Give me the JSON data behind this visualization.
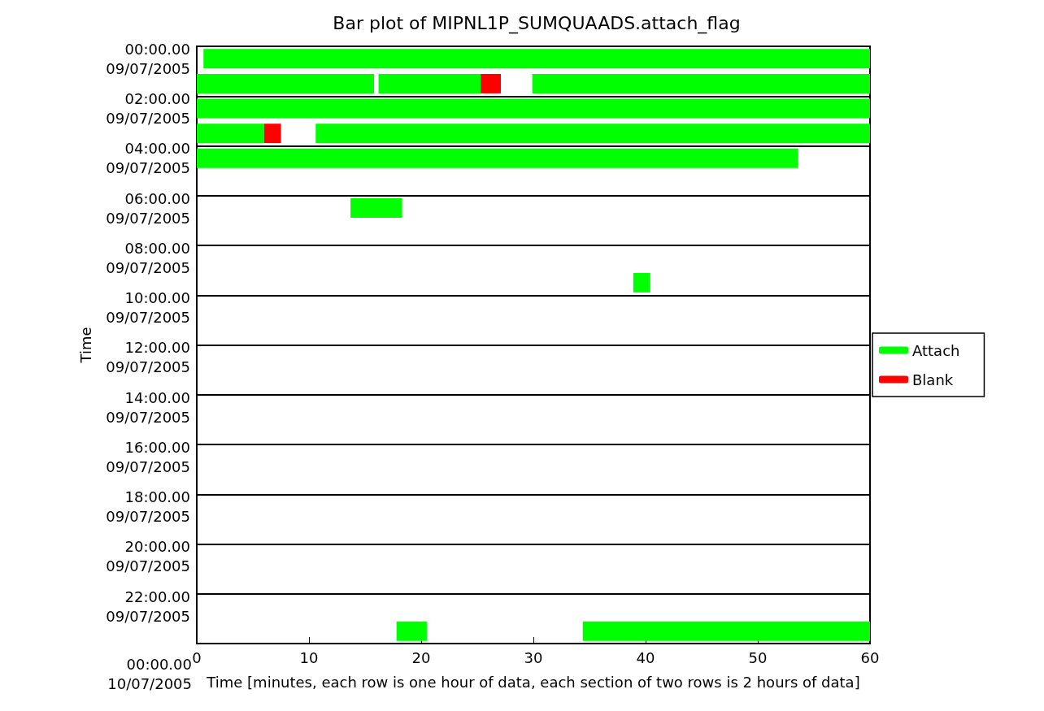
{
  "chart_data": {
    "type": "bar",
    "orientation": "horizontal",
    "title": "Bar plot of MIPNL1P_SUMQUAADS.attach_flag",
    "xlabel": "Time [minutes, each row is one hour of data, each section of two rows is 2 hours of data]",
    "ylabel": "Time",
    "categories": [
      "00:00.00\n09/07/2005",
      null,
      "02:00.00\n09/07/2005",
      null,
      "04:00.00\n09/07/2005",
      null,
      "06:00.00\n09/07/2005",
      null,
      "08:00.00\n09/07/2005",
      null,
      "10:00.00\n09/07/2005",
      null,
      "12:00.00\n09/07/2005",
      null,
      "14:00.00\n09/07/2005",
      null,
      "16:00.00\n09/07/2005",
      null,
      "18:00.00\n09/07/2005",
      null,
      "20:00.00\n09/07/2005",
      null,
      "22:00.00\n09/07/2005",
      null
    ],
    "series": [
      {
        "name": "Attach",
        "color": "#00ff00",
        "base": [
          0.6,
          0,
          0,
          0,
          0,
          null,
          13.7,
          null,
          null,
          38.9,
          null,
          null,
          null,
          null,
          null,
          null,
          null,
          null,
          null,
          null,
          null,
          null,
          null,
          17.8
        ],
        "values": [
          59.4,
          15.8,
          60,
          6.0,
          53.6,
          null,
          4.6,
          null,
          null,
          1.5,
          null,
          null,
          null,
          null,
          null,
          null,
          null,
          null,
          null,
          null,
          null,
          null,
          null,
          2.7
        ]
      },
      {
        "color": "#00ff00",
        "base": [
          null,
          16.2,
          null,
          10.6,
          null,
          null,
          null,
          null,
          null,
          null,
          null,
          null,
          null,
          null,
          null,
          null,
          null,
          null,
          null,
          null,
          null,
          null,
          null,
          34.4
        ],
        "values": [
          null,
          9.1,
          null,
          49.4,
          null,
          null,
          null,
          null,
          null,
          null,
          null,
          null,
          null,
          null,
          null,
          null,
          null,
          null,
          null,
          null,
          null,
          null,
          null,
          25.6
        ]
      },
      {
        "color": "#00ff00",
        "base": [
          null,
          29.9,
          null,
          null,
          null,
          null,
          null,
          null,
          null,
          null,
          null,
          null,
          null,
          null,
          null,
          null,
          null,
          null,
          null,
          null,
          null,
          null,
          null,
          null
        ],
        "values": [
          null,
          30.1,
          null,
          null,
          null,
          null,
          null,
          null,
          null,
          null,
          null,
          null,
          null,
          null,
          null,
          null,
          null,
          null,
          null,
          null,
          null,
          null,
          null,
          null
        ]
      },
      {
        "name": "Blank",
        "color": "#ff0000",
        "base": [
          null,
          25.3,
          null,
          6.0,
          null,
          null,
          null,
          null,
          null,
          null,
          null,
          null,
          null,
          null,
          null,
          null,
          null,
          null,
          null,
          null,
          null,
          null,
          null,
          null
        ],
        "values": [
          null,
          1.8,
          null,
          1.5,
          null,
          null,
          null,
          null,
          null,
          null,
          null,
          null,
          null,
          null,
          null,
          null,
          null,
          null,
          null,
          null,
          null,
          null,
          null,
          null
        ]
      }
    ],
    "xlim": [
      0,
      60
    ],
    "xticks": [
      0,
      10,
      20,
      30,
      40,
      50,
      60
    ],
    "annotations": [
      "00:00.00\n10/07/2005"
    ],
    "grid": "y",
    "legend": "right"
  }
}
